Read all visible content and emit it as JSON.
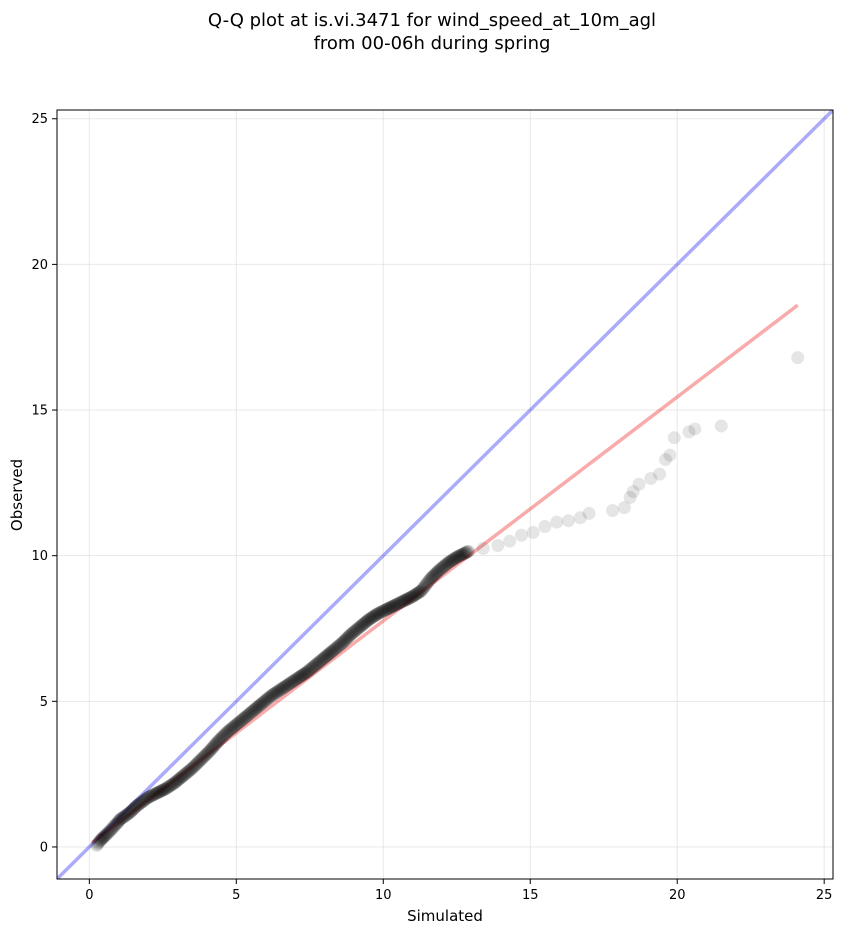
{
  "chart_data": {
    "type": "scatter",
    "title": "Q-Q plot at is.vi.3471 for wind_speed_at_10m_agl",
    "subtitle": "from 00-06h during spring",
    "xlabel": "Simulated",
    "ylabel": "Observed",
    "xlim": [
      -1.1,
      25.3
    ],
    "ylim": [
      -1.1,
      25.3
    ],
    "xticks": [
      0,
      5,
      10,
      15,
      20,
      25
    ],
    "yticks": [
      0,
      5,
      10,
      15,
      20,
      25
    ],
    "grid": true,
    "points": [
      [
        0.25,
        0.05
      ],
      [
        0.35,
        0.2
      ],
      [
        0.45,
        0.3
      ],
      [
        0.55,
        0.4
      ],
      [
        0.65,
        0.5
      ],
      [
        0.75,
        0.6
      ],
      [
        0.85,
        0.72
      ],
      [
        0.95,
        0.82
      ],
      [
        1.05,
        0.95
      ],
      [
        1.2,
        1.05
      ],
      [
        1.4,
        1.2
      ],
      [
        1.6,
        1.4
      ],
      [
        1.8,
        1.55
      ],
      [
        2.0,
        1.7
      ],
      [
        2.3,
        1.85
      ],
      [
        2.6,
        2.0
      ],
      [
        2.9,
        2.2
      ],
      [
        3.2,
        2.45
      ],
      [
        3.5,
        2.7
      ],
      [
        3.8,
        3.0
      ],
      [
        4.1,
        3.3
      ],
      [
        4.4,
        3.65
      ],
      [
        4.7,
        3.95
      ],
      [
        5.0,
        4.2
      ],
      [
        5.3,
        4.45
      ],
      [
        5.6,
        4.7
      ],
      [
        5.9,
        4.95
      ],
      [
        6.2,
        5.2
      ],
      [
        6.5,
        5.4
      ],
      [
        6.8,
        5.6
      ],
      [
        7.1,
        5.8
      ],
      [
        7.4,
        6.0
      ],
      [
        7.7,
        6.25
      ],
      [
        8.0,
        6.5
      ],
      [
        8.3,
        6.75
      ],
      [
        8.6,
        7.0
      ],
      [
        8.9,
        7.3
      ],
      [
        9.2,
        7.55
      ],
      [
        9.5,
        7.8
      ],
      [
        9.8,
        8.0
      ],
      [
        10.1,
        8.15
      ],
      [
        10.4,
        8.3
      ],
      [
        10.7,
        8.45
      ],
      [
        11.0,
        8.6
      ],
      [
        11.3,
        8.8
      ],
      [
        11.6,
        9.2
      ],
      [
        11.9,
        9.5
      ],
      [
        12.2,
        9.75
      ],
      [
        12.5,
        9.95
      ],
      [
        12.9,
        10.15
      ],
      [
        13.4,
        10.25
      ],
      [
        13.9,
        10.35
      ],
      [
        14.3,
        10.5
      ],
      [
        14.7,
        10.7
      ],
      [
        15.1,
        10.8
      ],
      [
        15.5,
        11.0
      ],
      [
        15.9,
        11.15
      ],
      [
        16.3,
        11.2
      ],
      [
        16.7,
        11.3
      ],
      [
        17.0,
        11.45
      ],
      [
        17.8,
        11.55
      ],
      [
        18.2,
        11.65
      ],
      [
        18.4,
        12.0
      ],
      [
        18.5,
        12.2
      ],
      [
        18.7,
        12.45
      ],
      [
        19.1,
        12.65
      ],
      [
        19.4,
        12.8
      ],
      [
        19.6,
        13.3
      ],
      [
        19.75,
        13.45
      ],
      [
        19.9,
        14.05
      ],
      [
        20.4,
        14.25
      ],
      [
        20.6,
        14.35
      ],
      [
        21.5,
        14.45
      ],
      [
        24.1,
        16.8
      ]
    ],
    "identity_line": [
      [
        -1.1,
        -1.1
      ],
      [
        25.3,
        25.3
      ]
    ],
    "fit_line": [
      [
        0.1,
        0.15
      ],
      [
        24.1,
        18.6
      ]
    ],
    "colors": {
      "points": "#000000",
      "identity_line": "#0000ee",
      "fit_line": "#ee0000",
      "grid": "#d9d9d9"
    }
  }
}
